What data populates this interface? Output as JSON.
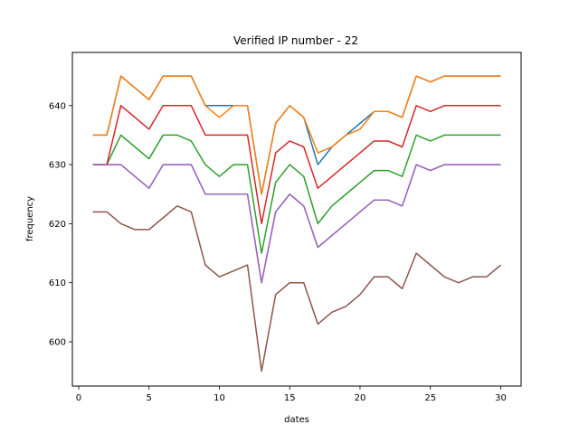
{
  "chart_data": {
    "type": "line",
    "title": "Verified IP number - 22",
    "xlabel": "dates",
    "ylabel": "frequency",
    "xlim": [
      -0.45,
      31.45
    ],
    "ylim": [
      592.5,
      649.0
    ],
    "xticks": [
      0,
      5,
      10,
      15,
      20,
      25,
      30
    ],
    "yticks": [
      600,
      610,
      620,
      630,
      640
    ],
    "grid": false,
    "x": [
      1,
      2,
      3,
      4,
      5,
      6,
      7,
      8,
      9,
      10,
      11,
      12,
      13,
      14,
      15,
      16,
      17,
      18,
      19,
      20,
      21,
      22,
      23,
      24,
      25,
      26,
      27,
      28,
      29,
      30
    ],
    "series": [
      {
        "color": "#1f77b4",
        "values": [
          635,
          635,
          645,
          643,
          641,
          645,
          645,
          645,
          640,
          640,
          640,
          640,
          625,
          637,
          640,
          638,
          630,
          633,
          635,
          637,
          639,
          639,
          638,
          645,
          644,
          645,
          645,
          645,
          645,
          645
        ]
      },
      {
        "color": "#ff7f0e",
        "values": [
          635,
          635,
          645,
          643,
          641,
          645,
          645,
          645,
          640,
          638,
          640,
          640,
          625,
          637,
          640,
          638,
          632,
          633,
          635,
          636,
          639,
          639,
          638,
          645,
          644,
          645,
          645,
          645,
          645,
          645
        ]
      },
      {
        "color": "#e377c2",
        "values": [
          630,
          630,
          630,
          628,
          626,
          630,
          630,
          630,
          625,
          625,
          625,
          625,
          610,
          622,
          625,
          623,
          616,
          618,
          620,
          622,
          624,
          624,
          623,
          630,
          629,
          630,
          630,
          630,
          630,
          630
        ]
      },
      {
        "color": "#2ca02c",
        "values": [
          630,
          630,
          635,
          633,
          631,
          635,
          635,
          634,
          630,
          628,
          630,
          630,
          615,
          627,
          630,
          628,
          620,
          623,
          625,
          627,
          629,
          629,
          628,
          635,
          634,
          635,
          635,
          635,
          635,
          635
        ]
      },
      {
        "color": "#d62728",
        "values": [
          630,
          630,
          640,
          638,
          636,
          640,
          640,
          640,
          635,
          635,
          635,
          635,
          620,
          632,
          634,
          633,
          626,
          628,
          630,
          632,
          634,
          634,
          633,
          640,
          639,
          640,
          640,
          640,
          640,
          640
        ]
      },
      {
        "color": "#9467bd",
        "values": [
          630,
          630,
          630,
          628,
          626,
          630,
          630,
          630,
          625,
          625,
          625,
          625,
          610,
          622,
          625,
          623,
          616,
          618,
          620,
          622,
          624,
          624,
          623,
          630,
          629,
          630,
          630,
          630,
          630,
          630
        ]
      },
      {
        "color": "#8c564b",
        "values": [
          622,
          622,
          620,
          619,
          619,
          621,
          623,
          622,
          613,
          611,
          612,
          613,
          595,
          608,
          610,
          610,
          603,
          605,
          606,
          608,
          611,
          611,
          609,
          615,
          613,
          611,
          610,
          611,
          611,
          613
        ]
      }
    ]
  }
}
